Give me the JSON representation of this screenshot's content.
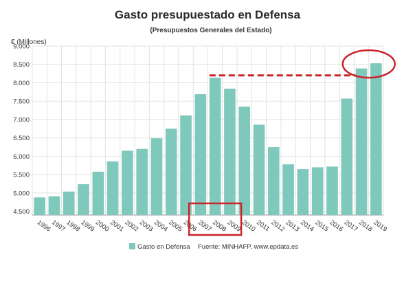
{
  "chart_data": {
    "type": "bar",
    "title": "Gasto presupuestado en Defensa",
    "subtitle": "(Presupuestos Generales del Estado)",
    "ylabel": "€ (Millones)",
    "xlabel": "",
    "categories": [
      "1996",
      "1997",
      "1998",
      "1999",
      "2000",
      "2001",
      "2002",
      "2003",
      "2004",
      "2005",
      "2006",
      "2007",
      "2008",
      "2009",
      "2010",
      "2011",
      "2012",
      "2013",
      "2014",
      "2015",
      "2016",
      "2017",
      "2018",
      "2019"
    ],
    "series": [
      {
        "name": "Gasto en Defensa",
        "values": [
          4880,
          4910,
          5040,
          5240,
          5580,
          5860,
          6150,
          6200,
          6490,
          6750,
          7110,
          7690,
          8140,
          7840,
          7350,
          6860,
          6250,
          5780,
          5650,
          5700,
          5720,
          7570,
          8390,
          8530
        ]
      }
    ],
    "ylim": [
      4400,
      9000
    ],
    "yticks": [
      4500,
      5000,
      5500,
      6000,
      6500,
      7000,
      7500,
      8000,
      8500,
      9000
    ],
    "ytick_labels": [
      "4.500",
      "5.000",
      "5.500",
      "6.000",
      "6.500",
      "7.000",
      "7.500",
      "8.000",
      "8.500",
      "9.000"
    ],
    "grid": true,
    "legend": "bottom-center",
    "source": "Fuente: MINHAFP, www.epdata.es",
    "colors": {
      "bar": "#7fc9bc",
      "annotation": "#cc2229",
      "grid": "#e2e2e2",
      "text": "#333333"
    },
    "annotations": [
      {
        "type": "rectangle",
        "around_categories": [
          "2007",
          "2009"
        ]
      },
      {
        "type": "dashed-line",
        "value": 8200,
        "from_category": "2008",
        "to_category": "2018"
      },
      {
        "type": "ellipse",
        "around_categories": [
          "2018",
          "2019"
        ]
      }
    ]
  }
}
